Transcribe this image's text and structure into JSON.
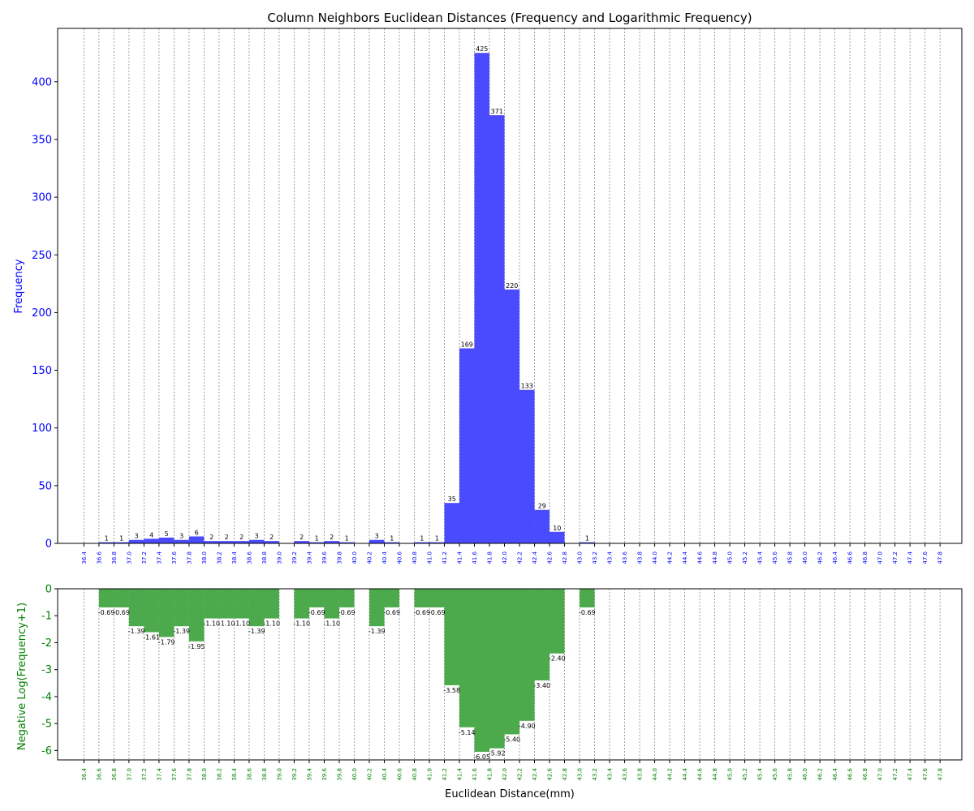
{
  "chart_data": {
    "type": "bar",
    "title": "Column Neighbors Euclidean Distances (Frequency and Logarithmic Frequency)",
    "xlabel": "Euclidean Distance(mm)",
    "bin_width": 0.2,
    "x_tick_labels": [
      "36.4",
      "36.6",
      "36.8",
      "37.0",
      "37.2",
      "37.4",
      "37.6",
      "37.8",
      "38.0",
      "38.2",
      "38.4",
      "38.6",
      "38.8",
      "39.0",
      "39.2",
      "39.4",
      "39.6",
      "39.8",
      "40.0",
      "40.2",
      "40.4",
      "40.6",
      "40.8",
      "41.0",
      "41.2",
      "41.4",
      "41.6",
      "41.8",
      "42.0",
      "42.2",
      "42.4",
      "42.6",
      "42.8",
      "43.0",
      "43.2",
      "43.4",
      "43.6",
      "43.8",
      "44.0",
      "44.2",
      "44.4",
      "44.6",
      "44.8",
      "45.0",
      "45.2",
      "45.4",
      "45.6",
      "45.8",
      "46.0",
      "46.2",
      "46.4",
      "46.6",
      "46.8",
      "47.0",
      "47.2",
      "47.4",
      "47.6",
      "47.8"
    ],
    "xlim": [
      36.05,
      48.09
    ],
    "bin_starts": [
      36.4,
      36.6,
      36.8,
      37.0,
      37.2,
      37.4,
      37.6,
      37.8,
      38.0,
      38.2,
      38.4,
      38.6,
      38.8,
      39.0,
      39.2,
      39.4,
      39.6,
      39.8,
      40.0,
      40.2,
      40.4,
      40.6,
      40.8,
      41.0,
      41.2,
      41.4,
      41.6,
      41.8,
      42.0,
      42.2,
      42.4,
      42.6,
      42.8,
      43.0,
      43.2,
      43.4,
      43.6,
      43.8,
      44.0,
      44.2,
      44.4,
      44.6,
      44.8,
      45.0,
      45.2,
      45.4,
      45.6,
      45.8,
      46.0,
      46.2,
      46.4,
      46.6,
      46.8,
      47.0,
      47.2,
      47.4,
      47.6
    ],
    "top_panel": {
      "ylabel": "Frequency",
      "ylim": [
        0,
        446.25
      ],
      "yticks": [
        0,
        50,
        100,
        150,
        200,
        250,
        300,
        350,
        400
      ],
      "color": "#4a4aff",
      "values": [
        0,
        1,
        1,
        3,
        4,
        5,
        3,
        6,
        2,
        2,
        2,
        3,
        2,
        0,
        2,
        1,
        2,
        1,
        0,
        3,
        1,
        0,
        1,
        1,
        35,
        169,
        425,
        371,
        220,
        133,
        29,
        10,
        0,
        1,
        0,
        0,
        0,
        0,
        0,
        0,
        0,
        0,
        0,
        0,
        0,
        0,
        0,
        0,
        0,
        0,
        0,
        0,
        0,
        0,
        0,
        0,
        0
      ]
    },
    "bottom_panel": {
      "ylabel": "Negative Log(Frequency+1)",
      "ylim": [
        -6.35,
        0
      ],
      "yticks": [
        0,
        -1,
        -2,
        -3,
        -4,
        -5,
        -6
      ],
      "color": "#4caa4c",
      "values": [
        0,
        -0.69,
        -0.69,
        -1.39,
        -1.61,
        -1.79,
        -1.39,
        -1.95,
        -1.1,
        -1.1,
        -1.1,
        -1.39,
        -1.1,
        0,
        -1.1,
        -0.69,
        -1.1,
        -0.69,
        0,
        -1.39,
        -0.69,
        0,
        -0.69,
        -0.69,
        -3.58,
        -5.14,
        -6.05,
        -5.92,
        -5.4,
        -4.9,
        -3.4,
        -2.4,
        0,
        -0.69,
        0,
        0,
        0,
        0,
        0,
        0,
        0,
        0,
        0,
        0,
        0,
        0,
        0,
        0,
        0,
        0,
        0,
        0,
        0,
        0,
        0,
        0,
        0
      ]
    },
    "grid": "vertical dashed",
    "legend": "none"
  }
}
